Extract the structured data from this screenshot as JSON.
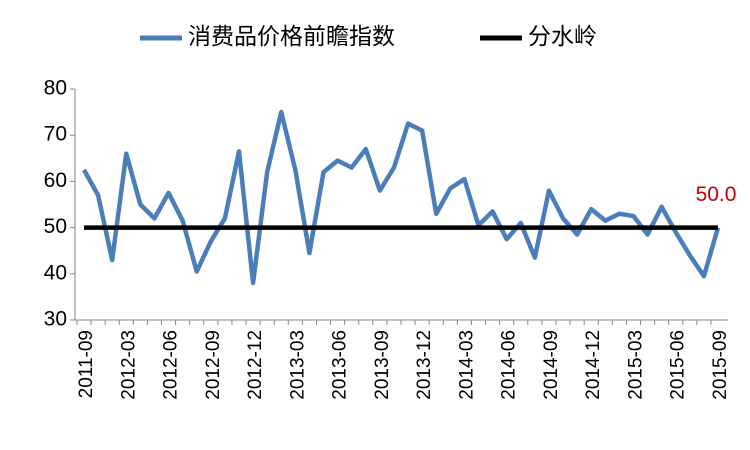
{
  "chart_data": {
    "type": "line",
    "categories": [
      "2011-09",
      null,
      null,
      "2012-03",
      null,
      null,
      "2012-06",
      null,
      null,
      "2012-09",
      null,
      null,
      "2012-12",
      null,
      null,
      "2013-03",
      null,
      null,
      "2013-06",
      null,
      null,
      "2013-09",
      null,
      null,
      "2013-12",
      null,
      null,
      "2014-03",
      null,
      null,
      "2014-06",
      null,
      null,
      "2014-09",
      null,
      null,
      "2014-12",
      null,
      null,
      "2015-03",
      null,
      null,
      "2015-06",
      null,
      null,
      "2015-09"
    ],
    "series": [
      {
        "name": "消费品价格前瞻指数",
        "color": "#4a7ebb",
        "values": [
          62.5,
          57,
          43,
          66,
          55,
          52,
          57.5,
          51.5,
          40.5,
          47,
          52,
          66.5,
          38,
          62,
          75,
          62.5,
          44.5,
          62,
          64.5,
          63,
          67,
          58,
          63,
          72.5,
          71,
          53,
          58.5,
          60.5,
          50.5,
          53.5,
          47.5,
          51,
          43.5,
          58,
          52,
          48.5,
          54,
          51.5,
          53,
          52.5,
          48.5,
          54.5,
          49,
          44,
          39.5,
          50
        ]
      },
      {
        "name": "分水岭",
        "color": "#000000",
        "values": [
          50,
          50,
          50,
          50,
          50,
          50,
          50,
          50,
          50,
          50,
          50,
          50,
          50,
          50,
          50,
          50,
          50,
          50,
          50,
          50,
          50,
          50,
          50,
          50,
          50,
          50,
          50,
          50,
          50,
          50,
          50,
          50,
          50,
          50,
          50,
          50,
          50,
          50,
          50,
          50,
          50,
          50,
          50,
          50,
          50,
          50
        ],
        "value_labels": [
          null,
          null,
          null,
          null,
          null,
          null,
          null,
          null,
          null,
          null,
          null,
          null,
          null,
          null,
          null,
          null,
          null,
          null,
          null,
          null,
          null,
          null,
          null,
          null,
          null,
          null,
          null,
          null,
          null,
          null,
          null,
          null,
          null,
          null,
          null,
          null,
          null,
          null,
          null,
          null,
          null,
          null,
          null,
          null,
          null,
          "50.0"
        ],
        "value_label_color": "#c00000"
      }
    ],
    "ylim": [
      30,
      80
    ],
    "yticks": [
      30,
      40,
      50,
      60,
      70,
      80
    ],
    "legend": "top"
  }
}
